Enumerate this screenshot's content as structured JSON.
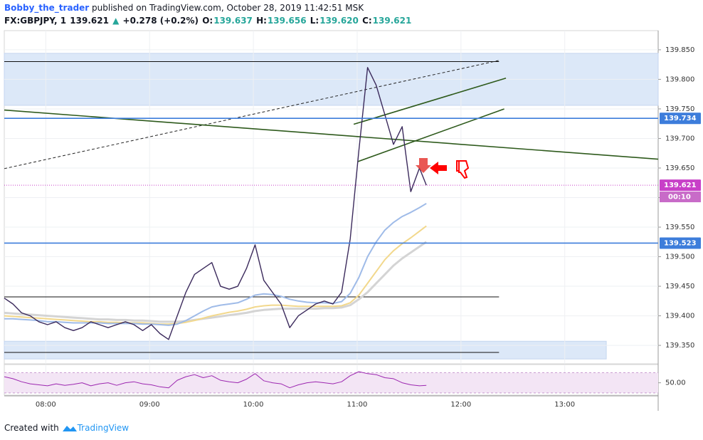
{
  "header": {
    "author": "Bobby_the_trader",
    "published": "published on TradingView.com, October 28, 2019 11:42:51 MSK",
    "symbol": "FX:GBPJPY, 1",
    "last": "139.621",
    "change": "+0.278 (+0.2%)",
    "ohlc": [
      {
        "label": "O:",
        "value": "139.637"
      },
      {
        "label": "H:",
        "value": "139.656"
      },
      {
        "label": "L:",
        "value": "139.620"
      },
      {
        "label": "C:",
        "value": "139.621"
      }
    ]
  },
  "footer": {
    "text": "Created with",
    "brand": "TradingView"
  },
  "chart_data": [
    {
      "type": "line",
      "x": [
        456,
        461,
        466,
        471,
        476,
        481,
        486,
        491,
        496,
        501,
        506,
        511,
        516,
        521,
        526,
        531,
        536,
        541,
        546,
        551,
        556,
        561,
        566,
        571,
        576,
        581,
        586,
        591,
        596,
        601,
        606,
        611,
        616,
        621,
        626,
        631,
        636,
        641,
        646,
        651,
        656,
        661,
        666,
        671,
        676,
        681,
        686,
        691,
        696,
        700
      ],
      "xlim": [
        456,
        834
      ],
      "xticks": [
        {
          "value": 480,
          "label": "08:00"
        },
        {
          "value": 540,
          "label": "09:00"
        },
        {
          "value": 600,
          "label": "10:00"
        },
        {
          "value": 660,
          "label": "11:00"
        },
        {
          "value": 720,
          "label": "12:00"
        },
        {
          "value": 780,
          "label": "13:00"
        }
      ],
      "ylim": [
        139.32,
        139.88
      ],
      "yticks": [
        {
          "value": 139.35,
          "label": "139.350"
        },
        {
          "value": 139.4,
          "label": "139.400"
        },
        {
          "value": 139.45,
          "label": "139.450"
        },
        {
          "value": 139.5,
          "label": "139.500"
        },
        {
          "value": 139.55,
          "label": "139.550"
        },
        {
          "value": 139.6,
          "label": "139.600"
        },
        {
          "value": 139.65,
          "label": "139.650"
        },
        {
          "value": 139.7,
          "label": "139.700"
        },
        {
          "value": 139.75,
          "label": "139.750"
        },
        {
          "value": 139.8,
          "label": "139.800"
        },
        {
          "value": 139.85,
          "label": "139.850"
        }
      ],
      "grid": true,
      "series": [
        {
          "color": "#3b2a5c",
          "width": 1.4,
          "values": [
            139.43,
            139.42,
            139.405,
            139.4,
            139.39,
            139.385,
            139.39,
            139.38,
            139.375,
            139.38,
            139.39,
            139.385,
            139.38,
            139.385,
            139.39,
            139.385,
            139.375,
            139.385,
            139.37,
            139.36,
            139.4,
            139.44,
            139.47,
            139.48,
            139.49,
            139.45,
            139.445,
            139.45,
            139.48,
            139.52,
            139.46,
            139.44,
            139.42,
            139.38,
            139.4,
            139.41,
            139.42,
            139.425,
            139.42,
            139.44,
            139.53,
            139.68,
            139.82,
            139.79,
            139.74,
            139.69,
            139.72,
            139.61,
            139.65,
            139.621
          ]
        },
        {
          "color": "#9fbbe8",
          "width": 2,
          "values": [
            139.395,
            139.395,
            139.394,
            139.393,
            139.392,
            139.39,
            139.39,
            139.389,
            139.388,
            139.388,
            139.388,
            139.388,
            139.387,
            139.387,
            139.387,
            139.387,
            139.386,
            139.386,
            139.385,
            139.384,
            139.386,
            139.392,
            139.4,
            139.408,
            139.415,
            139.418,
            139.42,
            139.422,
            139.428,
            139.435,
            139.437,
            139.436,
            139.433,
            139.428,
            139.425,
            139.423,
            139.422,
            139.422,
            139.421,
            139.424,
            139.438,
            139.465,
            139.5,
            139.525,
            139.545,
            139.558,
            139.568,
            139.575,
            139.583,
            139.59
          ]
        },
        {
          "color": "#f2d88c",
          "width": 2,
          "values": [
            139.4,
            139.399,
            139.398,
            139.397,
            139.396,
            139.395,
            139.394,
            139.393,
            139.392,
            139.391,
            139.39,
            139.39,
            139.389,
            139.389,
            139.388,
            139.388,
            139.388,
            139.387,
            139.386,
            139.386,
            139.387,
            139.389,
            139.392,
            139.396,
            139.4,
            139.403,
            139.406,
            139.408,
            139.411,
            139.415,
            139.417,
            139.418,
            139.418,
            139.417,
            139.416,
            139.416,
            139.416,
            139.416,
            139.416,
            139.417,
            139.422,
            139.435,
            139.455,
            139.475,
            139.495,
            139.51,
            139.522,
            139.532,
            139.543,
            139.552
          ]
        },
        {
          "color": "#d4d4d4",
          "width": 3,
          "values": [
            139.405,
            139.404,
            139.403,
            139.402,
            139.401,
            139.4,
            139.399,
            139.398,
            139.397,
            139.396,
            139.395,
            139.394,
            139.394,
            139.393,
            139.393,
            139.392,
            139.392,
            139.391,
            139.39,
            139.39,
            139.39,
            139.391,
            139.393,
            139.395,
            139.397,
            139.399,
            139.401,
            139.403,
            139.405,
            139.408,
            139.41,
            139.411,
            139.412,
            139.412,
            139.412,
            139.412,
            139.412,
            139.413,
            139.413,
            139.414,
            139.418,
            139.428,
            139.44,
            139.455,
            139.47,
            139.485,
            139.497,
            139.507,
            139.517,
            139.525
          ]
        }
      ],
      "zones": [
        {
          "x": [
            456,
            834
          ],
          "y": [
            139.756,
            139.844
          ],
          "color": "#dce8f8"
        },
        {
          "x": [
            456,
            804
          ],
          "y": [
            139.327,
            139.357
          ],
          "color": "#dce8f8"
        }
      ],
      "hlines": [
        {
          "x": [
            456,
            742
          ],
          "y": 139.83
        },
        {
          "x": [
            456,
            742
          ],
          "y": 139.432
        },
        {
          "x": [
            456,
            742
          ],
          "y": 139.338
        }
      ],
      "levels": [
        {
          "value": 139.734,
          "color": "#3d7ddb"
        },
        {
          "value": 139.523,
          "color": "#3d7ddb"
        },
        {
          "value": 139.621,
          "color": "#c83fc8",
          "dotted": true
        }
      ],
      "countdown": "00:10",
      "trendlines": [
        {
          "points": [
            [
              456,
              139.649
            ],
            [
              742,
              139.832
            ]
          ],
          "color": "#222222",
          "dash": true
        },
        {
          "points": [
            [
              456,
              139.748
            ],
            [
              834,
              139.665
            ]
          ],
          "color": "#2e5a1c"
        },
        {
          "points": [
            [
              658,
              139.724
            ],
            [
              746,
              139.802
            ]
          ],
          "color": "#2e5a1c"
        },
        {
          "points": [
            [
              660.5,
              139.661
            ],
            [
              745,
              139.75
            ]
          ],
          "color": "#2e5a1c"
        }
      ]
    },
    {
      "type": "line",
      "ylim": [
        27,
        86
      ],
      "yticks": [
        {
          "value": 50,
          "label": "50.00"
        }
      ],
      "band": [
        30,
        70
      ],
      "series": [
        {
          "color": "#9c27b0",
          "width": 1,
          "values": [
            62,
            58,
            52,
            48,
            46,
            44,
            48,
            45,
            47,
            50,
            44,
            48,
            50,
            45,
            50,
            52,
            48,
            46,
            42,
            40,
            55,
            62,
            66,
            60,
            64,
            55,
            52,
            50,
            57,
            68,
            54,
            50,
            48,
            40,
            46,
            50,
            52,
            50,
            48,
            52,
            64,
            72,
            68,
            66,
            60,
            58,
            50,
            46,
            44,
            45
          ]
        }
      ]
    }
  ]
}
